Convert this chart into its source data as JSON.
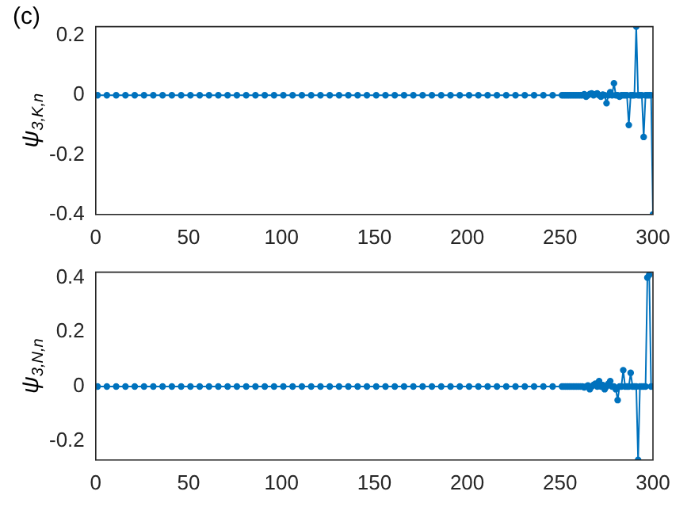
{
  "chart_data": [
    {
      "type": "line",
      "ylabel": "ψ$_{3,K,n}$",
      "annotations": [
        "(c)"
      ],
      "x": [
        1,
        6,
        11,
        16,
        21,
        26,
        31,
        36,
        41,
        46,
        51,
        56,
        61,
        66,
        71,
        76,
        81,
        86,
        91,
        96,
        101,
        106,
        111,
        116,
        121,
        126,
        131,
        136,
        141,
        146,
        151,
        156,
        161,
        166,
        171,
        176,
        181,
        186,
        191,
        196,
        201,
        206,
        211,
        216,
        221,
        226,
        231,
        236,
        241,
        246,
        251,
        252,
        253,
        254,
        255,
        256,
        257,
        258,
        259,
        260,
        261,
        262,
        263,
        264,
        265,
        266,
        267,
        268,
        269,
        270,
        271,
        272,
        273,
        274,
        275,
        276,
        277,
        278,
        279,
        280,
        281,
        282,
        283,
        284,
        285,
        286,
        287,
        288,
        289,
        290,
        291,
        292,
        293,
        294,
        295,
        296,
        297,
        298,
        299,
        300
      ],
      "series": [
        {
          "color": "#0072bd",
          "values": [
            0,
            0,
            0,
            0,
            0,
            0,
            0,
            0,
            0,
            0,
            0,
            0,
            0,
            0,
            0,
            0,
            0,
            0,
            0,
            0,
            0,
            0,
            0,
            0,
            0,
            0,
            0,
            0,
            0,
            0,
            0,
            0,
            0,
            0,
            0,
            0,
            0,
            0,
            0,
            0,
            0,
            0,
            0,
            0,
            0,
            0,
            0,
            0,
            0,
            0,
            0,
            0,
            0,
            0,
            0,
            0,
            0,
            0,
            0,
            0,
            0,
            0,
            0.003,
            -0.005,
            0,
            0.004,
            0.006,
            0,
            0.003,
            0.006,
            0,
            -0.005,
            0.002,
            0,
            -0.027,
            0,
            0.01,
            0,
            0.04,
            0,
            0,
            -0.005,
            0,
            0,
            0,
            0,
            -0.1,
            0,
            0,
            0,
            0.23,
            0,
            0,
            0,
            -0.14,
            0,
            0,
            0,
            0,
            -0.4
          ]
        }
      ],
      "xlim": [
        0,
        300
      ],
      "xticks": [
        0,
        50,
        100,
        150,
        200,
        250,
        300
      ],
      "ylim": [
        -0.4,
        0.23
      ],
      "yticks": [
        -0.4,
        -0.2,
        0,
        0.2
      ],
      "marker": "circle",
      "line_style": "solid",
      "grid": false,
      "legend": false
    },
    {
      "type": "line",
      "ylabel": "ψ$_{3,N,n}$",
      "x": [
        1,
        6,
        11,
        16,
        21,
        26,
        31,
        36,
        41,
        46,
        51,
        56,
        61,
        66,
        71,
        76,
        81,
        86,
        91,
        96,
        101,
        106,
        111,
        116,
        121,
        126,
        131,
        136,
        141,
        146,
        151,
        156,
        161,
        166,
        171,
        176,
        181,
        186,
        191,
        196,
        201,
        206,
        211,
        216,
        221,
        226,
        231,
        236,
        241,
        246,
        251,
        252,
        253,
        254,
        255,
        256,
        257,
        258,
        259,
        260,
        261,
        262,
        263,
        264,
        265,
        266,
        267,
        268,
        269,
        270,
        271,
        272,
        273,
        274,
        275,
        276,
        277,
        278,
        279,
        280,
        281,
        282,
        283,
        284,
        285,
        286,
        287,
        288,
        289,
        290,
        291,
        292,
        293,
        294,
        295,
        296,
        297,
        298,
        299,
        300
      ],
      "series": [
        {
          "color": "#0072bd",
          "values": [
            0,
            0,
            0,
            0,
            0,
            0,
            0,
            0,
            0,
            0,
            0,
            0,
            0,
            0,
            0,
            0,
            0,
            0,
            0,
            0,
            0,
            0,
            0,
            0,
            0,
            0,
            0,
            0,
            0,
            0,
            0,
            0,
            0,
            0,
            0,
            0,
            0,
            0,
            0,
            0,
            0,
            0,
            0,
            0,
            0,
            0,
            0,
            0,
            0,
            0,
            0,
            0,
            0,
            0,
            0,
            0,
            0,
            0,
            0,
            0,
            0,
            0,
            -0.003,
            0,
            0.004,
            -0.01,
            0,
            0.006,
            0.01,
            0,
            0.02,
            0,
            0.005,
            -0.01,
            0,
            0.01,
            0.02,
            0,
            0,
            -0.01,
            -0.05,
            0,
            0,
            0.06,
            0,
            0,
            0,
            0.05,
            0,
            0,
            0,
            -0.27,
            0,
            0,
            0,
            0,
            0.4,
            0.41,
            0,
            0
          ]
        }
      ],
      "xlim": [
        0,
        300
      ],
      "xticks": [
        0,
        50,
        100,
        150,
        200,
        250,
        300
      ],
      "ylim": [
        -0.27,
        0.42
      ],
      "yticks": [
        -0.2,
        0,
        0.2,
        0.4
      ],
      "marker": "circle",
      "line_style": "solid",
      "grid": false,
      "legend": false
    }
  ]
}
